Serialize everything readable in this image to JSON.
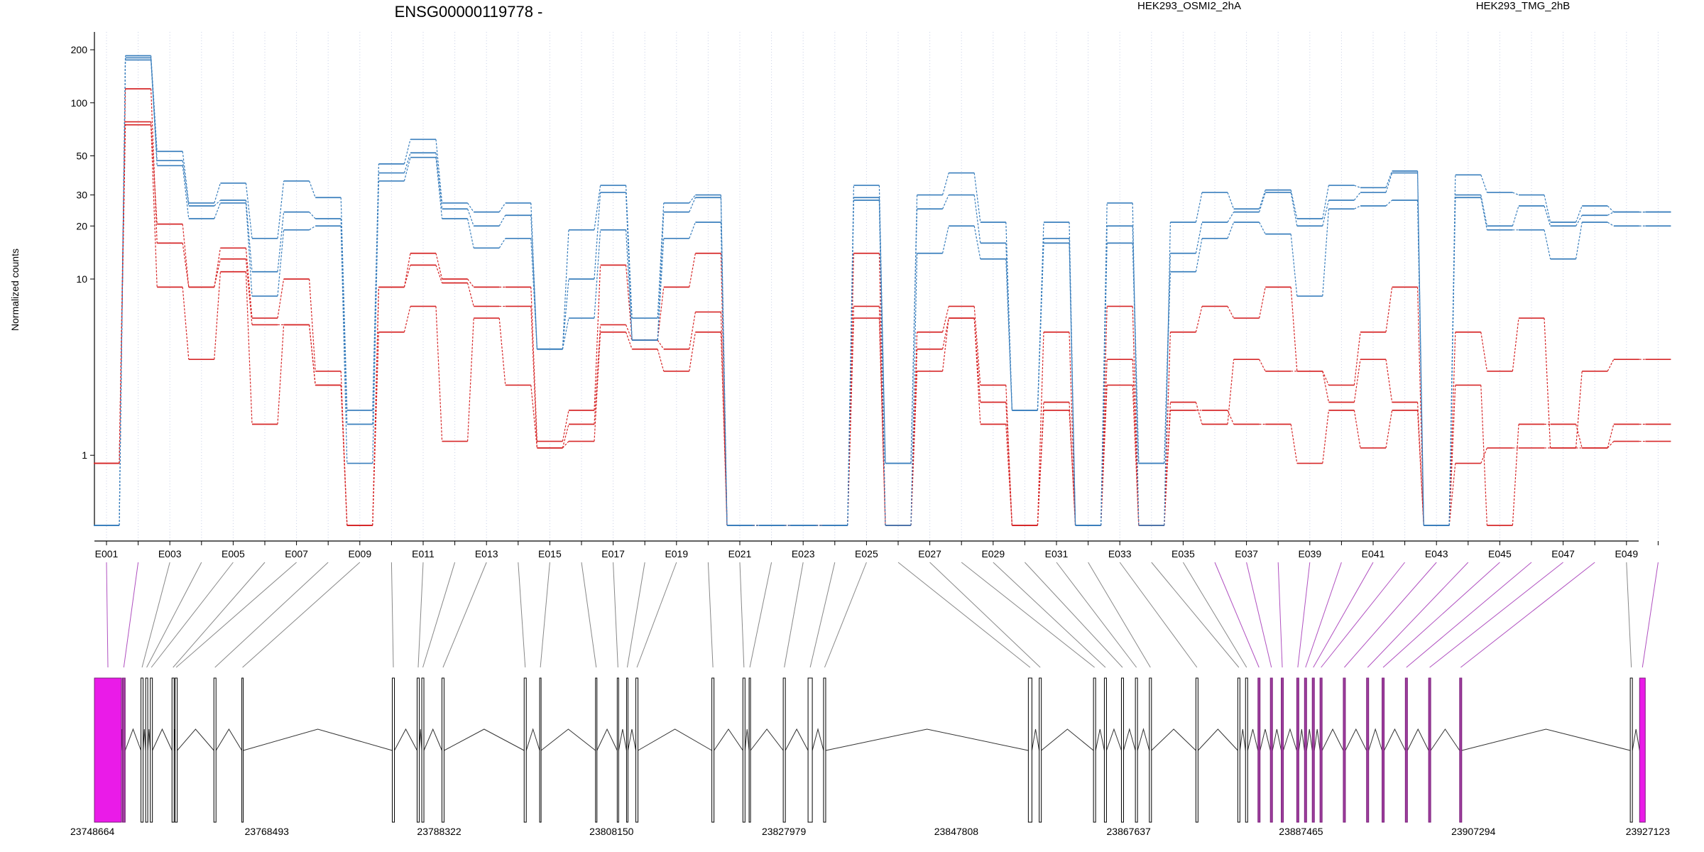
{
  "chart_data": {
    "type": "line",
    "title": "ENSG00000119778 -",
    "ylabel": "Normalized counts",
    "yscale": "log",
    "yticks": [
      1,
      10,
      20,
      30,
      50,
      100,
      200
    ],
    "exons": [
      "E001",
      "E002",
      "E003",
      "E004",
      "E005",
      "E006",
      "E007",
      "E008",
      "E009",
      "E010",
      "E011",
      "E012",
      "E013",
      "E014",
      "E015",
      "E016",
      "E017",
      "E018",
      "E019",
      "E020",
      "E021",
      "E022",
      "E023",
      "E024",
      "E025",
      "E026",
      "E027",
      "E028",
      "E029",
      "E030",
      "E031",
      "E032",
      "E033",
      "E034",
      "E035",
      "E036",
      "E037",
      "E038",
      "E039",
      "E040",
      "E041",
      "E042",
      "E043",
      "E044",
      "E045",
      "E046",
      "E047",
      "E048",
      "E049",
      "E050"
    ],
    "exon_tick_labels": [
      "E001",
      "E003",
      "E005",
      "E007",
      "E009",
      "E011",
      "E013",
      "E015",
      "E017",
      "E019",
      "E021",
      "E023",
      "E025",
      "E027",
      "E029",
      "E031",
      "E033",
      "E035",
      "E037",
      "E039",
      "E041",
      "E043",
      "E045",
      "E047",
      "E049"
    ],
    "groups": [
      {
        "name": "HEK293_OSMI2_2hA",
        "color": "#d62728"
      },
      {
        "name": "HEK293_TMG_2hB",
        "color": "#3a7fbd"
      }
    ],
    "series": [
      {
        "group": 0,
        "values": [
          0.9,
          120,
          16,
          9,
          15,
          6,
          10,
          3,
          0.4,
          9,
          14,
          10,
          9,
          9,
          1.2,
          1.8,
          12,
          4.5,
          9,
          14,
          0.4,
          0.4,
          0.4,
          0.4,
          14,
          0.4,
          5,
          7,
          2.5,
          0.4,
          5,
          0.4,
          7,
          0.4,
          5,
          7,
          6,
          9,
          3,
          2.5,
          5,
          9,
          0.4,
          5,
          3,
          6,
          1.1,
          3,
          3.5,
          3.5
        ]
      },
      {
        "group": 0,
        "values": [
          0.9,
          78,
          20.5,
          9,
          13,
          5.5,
          5.5,
          2.5,
          0.4,
          9,
          12,
          9.5,
          7,
          7,
          1.1,
          1.5,
          5.5,
          4.5,
          4,
          6.5,
          0.4,
          0.4,
          0.4,
          0.4,
          7,
          0.4,
          4,
          6,
          2,
          0.4,
          2,
          0.4,
          3.5,
          0.4,
          2,
          1.5,
          3.5,
          3,
          3,
          2,
          3.5,
          2,
          0.4,
          2.5,
          0.4,
          1.5,
          1.5,
          1.1,
          1.5,
          1.5
        ]
      },
      {
        "group": 0,
        "values": [
          0.9,
          75,
          9,
          3.5,
          11,
          1.5,
          5.5,
          2.5,
          0.4,
          5,
          7,
          1.2,
          6,
          2.5,
          1.1,
          1.2,
          5,
          4,
          3,
          5,
          0.4,
          0.4,
          0.4,
          0.4,
          6,
          0.4,
          3,
          6,
          1.5,
          0.4,
          1.8,
          0.4,
          2.5,
          0.4,
          1.8,
          1.8,
          1.5,
          1.5,
          0.9,
          1.8,
          1.1,
          1.8,
          0.4,
          0.9,
          1.1,
          1.1,
          1.1,
          1.1,
          1.2,
          1.2
        ]
      },
      {
        "group": 1,
        "values": [
          0.4,
          185,
          53,
          27,
          35,
          17,
          36,
          29,
          1.8,
          45,
          62,
          27,
          24,
          27,
          4,
          19,
          34,
          6,
          27,
          30,
          0.4,
          0.4,
          0.4,
          0.4,
          34,
          0.9,
          30,
          40,
          21,
          1.8,
          21,
          0.4,
          27,
          0.4,
          21,
          31,
          25,
          32,
          22,
          34,
          33,
          41,
          0.4,
          39,
          31,
          30,
          21,
          26,
          24,
          24
        ]
      },
      {
        "group": 1,
        "values": [
          0.4,
          180,
          47,
          26,
          28,
          11,
          24,
          22,
          1.5,
          40,
          52,
          25,
          20,
          23,
          4,
          10,
          31,
          4.5,
          24,
          29,
          0.4,
          0.4,
          0.4,
          0.4,
          29,
          0.9,
          25,
          30,
          16,
          1.8,
          17,
          0.4,
          20,
          0.9,
          14,
          21,
          24,
          31,
          20,
          28,
          31,
          40,
          0.4,
          30,
          20,
          26,
          20,
          23,
          24,
          24
        ]
      },
      {
        "group": 1,
        "values": [
          0.4,
          175,
          44,
          22,
          27,
          8,
          19,
          20,
          0.9,
          36,
          49,
          22,
          15,
          17,
          4,
          6,
          19,
          4.5,
          17,
          21,
          0.4,
          0.4,
          0.4,
          0.4,
          28,
          0.4,
          14,
          20,
          13,
          1.8,
          16,
          0.4,
          16,
          0.9,
          11,
          17,
          21,
          18,
          8,
          25,
          26,
          28,
          0.4,
          29,
          19,
          19,
          13,
          21,
          20,
          20
        ]
      }
    ],
    "genomic_coordinates": [
      "23748664",
      "23768493",
      "23788322",
      "23808150",
      "23827979",
      "23847808",
      "23867637",
      "23887465",
      "23907294",
      "23927123"
    ],
    "exon_counted_flags": [
      true,
      true,
      false,
      false,
      false,
      false,
      false,
      false,
      false,
      false,
      false,
      false,
      false,
      false,
      false,
      false,
      false,
      false,
      false,
      false,
      false,
      false,
      false,
      false,
      false,
      false,
      false,
      false,
      false,
      false,
      false,
      false,
      false,
      false,
      false,
      true,
      true,
      true,
      true,
      true,
      true,
      true,
      true,
      true,
      true,
      true,
      true,
      true,
      false,
      true
    ],
    "highlight_color": "#ea1be8",
    "grid": "vertical dotted at exon ticks",
    "legend_placement": "top"
  }
}
